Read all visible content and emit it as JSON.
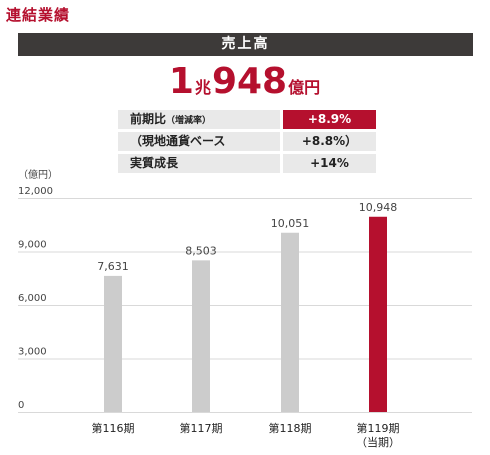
{
  "header": {
    "section_title": "連結業績"
  },
  "banner": {
    "title": "売上高"
  },
  "headline": {
    "part1": "1",
    "part2": "兆",
    "part3": "948",
    "part4": "億円"
  },
  "metrics": [
    {
      "label": "前期比",
      "note": "（増減率）",
      "value": "+8.9%",
      "highlight": true
    },
    {
      "label": "（現地通貨ベース",
      "note": "",
      "value": "+8.8%）",
      "highlight": false
    },
    {
      "label": "実質成長",
      "note": "",
      "value": "+14%",
      "highlight": false
    }
  ],
  "colors": {
    "accent": "#b5102e",
    "bar_default": "#cccccc",
    "banner_bg": "#3d3a39"
  },
  "chart_data": {
    "type": "bar",
    "unit_label": "（億円）",
    "categories": [
      "第116期",
      "第117期",
      "第118期",
      "第119期"
    ],
    "category_sublabels": [
      "",
      "",
      "",
      "（当期）"
    ],
    "values": [
      7631,
      8503,
      10051,
      10948
    ],
    "value_labels": [
      "7,631",
      "8,503",
      "10,051",
      "10,948"
    ],
    "highlight_index": 3,
    "ylim": [
      0,
      12000
    ],
    "yticks": [
      0,
      3000,
      6000,
      9000,
      12000
    ],
    "ytick_labels": [
      "0",
      "3,000",
      "6,000",
      "9,000",
      "12,000"
    ],
    "grid": true
  }
}
